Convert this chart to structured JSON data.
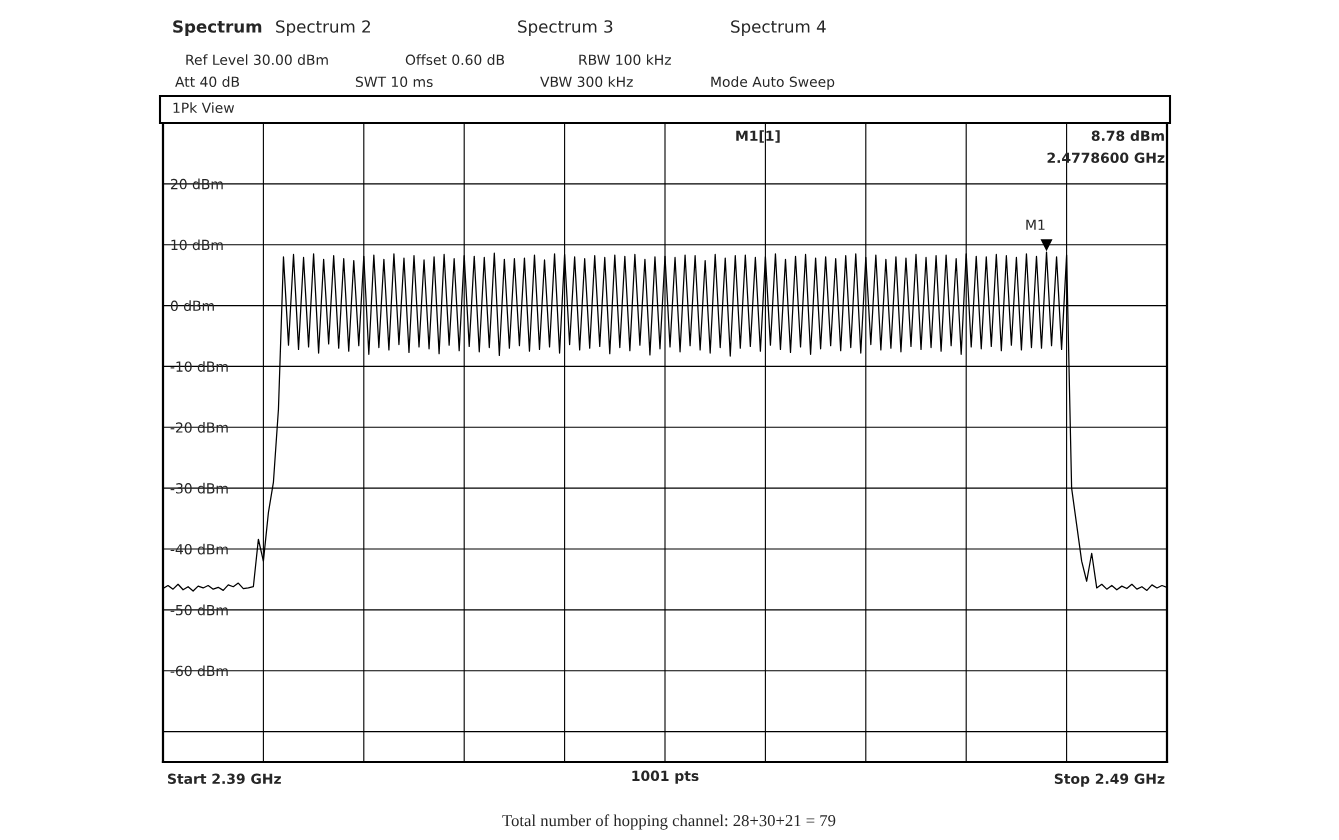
{
  "chart_data": {
    "type": "line",
    "subtitle": "1Pk View",
    "xlabel": "1001 pts",
    "annotations": [
      "Spectrum",
      "Spectrum 2",
      "Spectrum 3",
      "Spectrum 4",
      "Ref Level 30.00 dBm",
      "Offset 0.60 dB",
      "RBW 100 kHz",
      "Att 40 dB",
      "SWT 10 ms",
      "VBW 300 kHz",
      "Mode Auto Sweep",
      "M1[1]",
      "8.78 dBm",
      "2.4778600 GHz",
      "Start 2.39 GHz",
      "Stop 2.49 GHz",
      "Total number of hopping channel: 28+30+21 = 79",
      "M1"
    ],
    "categories": [
      null,
      null,
      null,
      null,
      null,
      null,
      null,
      null,
      null,
      null,
      null,
      null,
      null,
      null,
      null,
      null,
      null,
      null,
      null,
      null,
      null,
      null,
      null,
      null,
      null,
      null,
      null,
      null,
      null,
      null,
      null,
      null,
      null,
      null,
      null,
      null,
      null,
      null,
      null,
      null,
      null,
      null,
      null,
      null,
      null,
      null,
      null,
      null,
      null,
      null,
      null,
      null,
      null,
      null,
      null,
      null,
      null,
      null,
      null,
      null,
      null,
      null,
      null,
      null,
      null,
      null,
      null,
      null,
      null,
      null,
      null,
      null,
      null,
      null,
      null,
      null,
      null,
      null,
      null,
      null,
      null,
      null,
      null,
      null,
      null,
      null,
      null,
      null,
      null,
      null,
      null,
      null,
      null,
      null,
      null,
      null,
      null,
      null,
      null,
      null,
      null,
      null,
      null,
      null,
      null,
      null,
      null,
      null,
      null,
      null,
      null,
      null,
      null,
      null,
      null,
      null,
      null,
      null,
      null,
      null,
      null,
      null,
      null,
      null,
      null,
      null,
      null,
      null,
      null,
      null,
      null,
      null,
      null,
      null,
      null,
      null,
      null,
      null,
      null,
      null,
      null,
      null,
      null,
      null,
      null,
      null,
      null,
      null,
      null,
      null,
      null,
      null,
      null,
      null,
      null,
      null,
      null,
      null,
      null,
      null,
      null,
      null,
      null,
      null,
      null,
      null,
      null,
      null,
      null,
      null,
      null,
      null,
      null,
      null,
      null,
      null,
      null,
      null,
      null,
      null,
      null,
      null,
      null,
      null,
      null,
      null,
      null,
      null,
      null,
      null,
      null,
      null,
      null,
      null,
      null,
      null,
      null,
      null,
      null,
      null,
      null
    ],
    "ylim": [
      -75,
      30
    ],
    "yticks": [
      {
        "value": 20,
        "label": "20 dBm"
      },
      {
        "value": 10,
        "label": "10 dBm"
      },
      {
        "value": 0,
        "label": "0 dBm"
      },
      {
        "value": -10,
        "label": "-10 dBm"
      },
      {
        "value": -20,
        "label": "-20 dBm"
      },
      {
        "value": -30,
        "label": "-30 dBm"
      },
      {
        "value": -40,
        "label": "-40 dBm"
      },
      {
        "value": -50,
        "label": "-50 dBm"
      },
      {
        "value": -60,
        "label": "-60 dBm"
      },
      {
        "value": -70,
        "label": null
      }
    ],
    "tick_labels": "y",
    "grid": true,
    "legend": false,
    "series": [
      {
        "color": "#000000",
        "values": [
          -46.5,
          -46.0,
          -46.6,
          -45.8,
          -46.7,
          -46.2,
          -46.9,
          -46.1,
          -46.4,
          -46.0,
          -46.6,
          -46.3,
          -46.8,
          -45.9,
          -46.2,
          -45.6,
          -46.5,
          -46.4,
          -46.2,
          -38.4,
          -42,
          -34,
          -29,
          -17,
          8.0,
          -6.5,
          8.4,
          -7.2,
          7.9,
          -6.8,
          8.5,
          -7.8,
          7.6,
          -6.3,
          8.2,
          -7.0,
          7.7,
          -7.5,
          7.4,
          -6.6,
          8.1,
          -8.0,
          8.3,
          -6.9,
          7.6,
          -7.3,
          8.5,
          -6.4,
          7.8,
          -7.7,
          8.2,
          -6.8,
          7.5,
          -7.1,
          8.0,
          -7.9,
          8.4,
          -6.5,
          7.7,
          -7.4,
          8.2,
          -6.7,
          8.1,
          -7.6,
          7.9,
          -6.9,
          8.6,
          -8.2,
          7.6,
          -7.0,
          7.7,
          -6.6,
          7.8,
          -7.5,
          8.3,
          -7.2,
          7.5,
          -6.8,
          8.5,
          -7.8,
          8.4,
          -6.4,
          8.0,
          -7.3,
          7.7,
          -7.0,
          8.2,
          -6.7,
          7.9,
          -7.9,
          8.3,
          -6.9,
          8.1,
          -7.4,
          8.4,
          -6.5,
          7.6,
          -8.1,
          8.0,
          -7.1,
          8.1,
          -6.8,
          7.9,
          -7.6,
          8.3,
          -6.6,
          8.2,
          -7.3,
          7.4,
          -7.8,
          8.4,
          -6.9,
          7.8,
          -8.3,
          8.2,
          -7.0,
          8.3,
          -6.7,
          7.9,
          -7.5,
          8.0,
          -6.5,
          8.5,
          -7.2,
          7.6,
          -7.7,
          8.1,
          -6.8,
          8.4,
          -8.0,
          7.8,
          -7.1,
          8.0,
          -6.6,
          7.7,
          -7.4,
          8.2,
          -6.9,
          8.5,
          -7.8,
          7.9,
          -6.4,
          8.3,
          -7.3,
          7.6,
          -7.0,
          8.0,
          -7.6,
          7.8,
          -6.7,
          8.4,
          -7.2,
          7.9,
          -6.9,
          8.2,
          -7.5,
          8.3,
          -6.6,
          7.7,
          -8.0,
          8.5,
          -6.8,
          8.1,
          -7.1,
          8.0,
          -6.7,
          8.4,
          -7.4,
          8.2,
          -6.5,
          7.9,
          -7.3,
          8.5,
          -6.9,
          8.1,
          -7.0,
          8.78,
          -6.6,
          8.0,
          -7.2,
          8.3,
          -30,
          -36,
          -42,
          -45.3,
          -40.7,
          -46.4,
          -45.8,
          -46.6,
          -46.0,
          -46.7,
          -46.1,
          -46.5,
          -45.8,
          -46.6,
          -46.2,
          -46.8,
          -45.9,
          -46.4,
          -46.0,
          -46.3
        ]
      }
    ]
  }
}
